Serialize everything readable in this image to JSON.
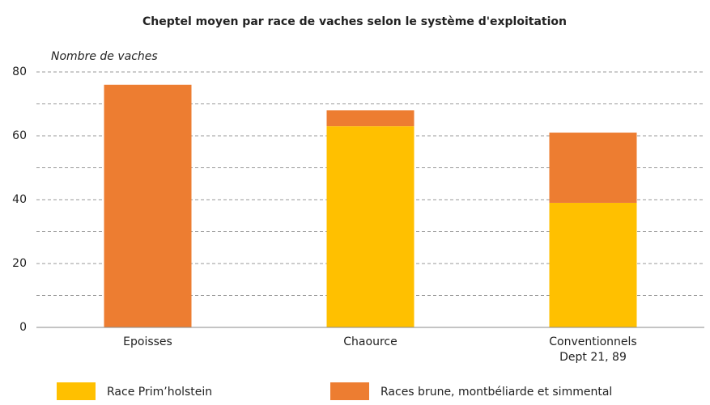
{
  "chart_data": {
    "type": "stacked_bar",
    "title": "Cheptel moyen par race de vaches selon le système d'exploitation",
    "y_label": "Nombre de vaches",
    "categories": [
      "Epoisses",
      "Chaource",
      "Conventionnels\nDept 21, 89"
    ],
    "series": [
      {
        "name": "Race Prim’holstein",
        "color": "#ffc000",
        "values": [
          0,
          63,
          39
        ]
      },
      {
        "name": "Races brune, montbéliarde et simmental",
        "color": "#ed7d31",
        "values": [
          76,
          5,
          22
        ]
      }
    ],
    "ylim": [
      0,
      80
    ],
    "yticks": [
      0,
      20,
      40,
      60,
      80
    ],
    "minor_yticks": [
      10,
      30,
      50,
      70
    ],
    "grid": true,
    "legend": "bottom"
  }
}
